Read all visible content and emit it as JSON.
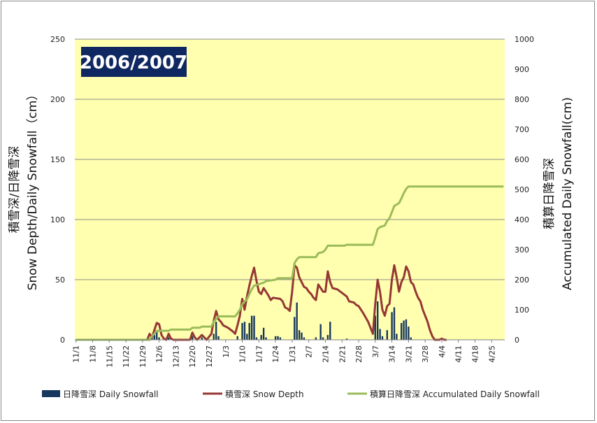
{
  "chart_data": {
    "type": "bar",
    "title": "2006/2007",
    "left_axis_label_line1": "積雪深/日降雪深",
    "left_axis_label_line2": "Snow Depth/Daily Snowfall（cm）",
    "right_axis_label_line1": "積算日降雪深",
    "right_axis_label_line2": "Accumulated Daily Snowfall(cm)",
    "ylim_left": [
      0,
      250
    ],
    "yticks_left": [
      0,
      50,
      100,
      150,
      200,
      250
    ],
    "ylim_right": [
      0,
      1000
    ],
    "yticks_right": [
      0,
      100,
      200,
      300,
      400,
      500,
      600,
      700,
      800,
      900,
      1000
    ],
    "x_start": "2006-11-01",
    "x_end": "2007-04-30",
    "x_tick_labels": [
      "11/1",
      "11/8",
      "11/15",
      "11/22",
      "11/29",
      "12/6",
      "12/13",
      "12/20",
      "12/27",
      "1/3",
      "1/10",
      "1/17",
      "1/24",
      "1/31",
      "2/7",
      "2/14",
      "2/21",
      "2/28",
      "3/7",
      "3/14",
      "3/21",
      "3/28",
      "4/4",
      "4/11",
      "4/18",
      "4/25"
    ],
    "grid": true,
    "plot_background": "#FFFFAF",
    "legend_position": "bottom",
    "series": [
      {
        "name": "日降雪深 Daily Snowfall",
        "type": "bar",
        "axis": "left",
        "color": "#17375E",
        "points": [
          [
            "12/3",
            3
          ],
          [
            "12/4",
            4
          ],
          [
            "12/5",
            8
          ],
          [
            "12/6",
            2
          ],
          [
            "12/10",
            2
          ],
          [
            "12/20",
            3
          ],
          [
            "12/24",
            2
          ],
          [
            "12/29",
            5
          ],
          [
            "12/30",
            15
          ],
          [
            "12/31",
            3
          ],
          [
            "1/8",
            3
          ],
          [
            "1/10",
            14
          ],
          [
            "1/11",
            15
          ],
          [
            "1/12",
            5
          ],
          [
            "1/13",
            14
          ],
          [
            "1/14",
            20
          ],
          [
            "1/15",
            20
          ],
          [
            "1/16",
            2
          ],
          [
            "1/18",
            4
          ],
          [
            "1/19",
            10
          ],
          [
            "1/20",
            2
          ],
          [
            "1/24",
            3
          ],
          [
            "1/25",
            3
          ],
          [
            "1/26",
            2
          ],
          [
            "2/1",
            19
          ],
          [
            "2/2",
            31
          ],
          [
            "2/3",
            8
          ],
          [
            "2/4",
            6
          ],
          [
            "2/5",
            2
          ],
          [
            "2/10",
            2
          ],
          [
            "2/12",
            13
          ],
          [
            "2/13",
            2
          ],
          [
            "2/15",
            4
          ],
          [
            "2/16",
            15
          ],
          [
            "2/23",
            1
          ],
          [
            "3/7",
            20
          ],
          [
            "3/8",
            32
          ],
          [
            "3/9",
            9
          ],
          [
            "3/10",
            3
          ],
          [
            "3/12",
            8
          ],
          [
            "3/14",
            23
          ],
          [
            "3/15",
            27
          ],
          [
            "3/16",
            5
          ],
          [
            "3/18",
            14
          ],
          [
            "3/19",
            16
          ],
          [
            "3/20",
            17
          ],
          [
            "3/21",
            11
          ],
          [
            "3/22",
            2
          ]
        ]
      },
      {
        "name": "積雪深 Snow Depth",
        "type": "line",
        "axis": "left",
        "color": "#953735",
        "points": [
          [
            "12/1",
            0
          ],
          [
            "12/2",
            5
          ],
          [
            "12/3",
            2
          ],
          [
            "12/5",
            14
          ],
          [
            "12/6",
            13
          ],
          [
            "12/7",
            4
          ],
          [
            "12/8",
            1
          ],
          [
            "12/9",
            0
          ],
          [
            "12/10",
            5
          ],
          [
            "12/11",
            1
          ],
          [
            "12/12",
            0
          ],
          [
            "12/19",
            0
          ],
          [
            "12/20",
            6
          ],
          [
            "12/21",
            2
          ],
          [
            "12/22",
            0
          ],
          [
            "12/24",
            4
          ],
          [
            "12/25",
            2
          ],
          [
            "12/26",
            0
          ],
          [
            "12/28",
            5
          ],
          [
            "12/29",
            16
          ],
          [
            "12/30",
            24
          ],
          [
            "12/31",
            17
          ],
          [
            "1/1",
            15
          ],
          [
            "1/2",
            12
          ],
          [
            "1/4",
            10
          ],
          [
            "1/6",
            7
          ],
          [
            "1/7",
            5
          ],
          [
            "1/8",
            12
          ],
          [
            "1/9",
            20
          ],
          [
            "1/10",
            34
          ],
          [
            "1/11",
            25
          ],
          [
            "1/12",
            36
          ],
          [
            "1/13",
            45
          ],
          [
            "1/14",
            53
          ],
          [
            "1/15",
            60
          ],
          [
            "1/16",
            49
          ],
          [
            "1/17",
            40
          ],
          [
            "1/18",
            38
          ],
          [
            "1/19",
            43
          ],
          [
            "1/20",
            40
          ],
          [
            "1/21",
            37
          ],
          [
            "1/22",
            33
          ],
          [
            "1/23",
            35
          ],
          [
            "1/26",
            34
          ],
          [
            "1/27",
            32
          ],
          [
            "1/28",
            27
          ],
          [
            "1/29",
            26
          ],
          [
            "1/30",
            24
          ],
          [
            "1/31",
            40
          ],
          [
            "2/1",
            62
          ],
          [
            "2/2",
            60
          ],
          [
            "2/3",
            52
          ],
          [
            "2/4",
            48
          ],
          [
            "2/5",
            44
          ],
          [
            "2/6",
            43
          ],
          [
            "2/7",
            40
          ],
          [
            "2/8",
            38
          ],
          [
            "2/9",
            35
          ],
          [
            "2/10",
            33
          ],
          [
            "2/11",
            46
          ],
          [
            "2/12",
            43
          ],
          [
            "2/13",
            40
          ],
          [
            "2/14",
            40
          ],
          [
            "2/15",
            57
          ],
          [
            "2/16",
            48
          ],
          [
            "2/17",
            43
          ],
          [
            "2/19",
            42
          ],
          [
            "2/21",
            39
          ],
          [
            "2/23",
            36
          ],
          [
            "2/24",
            32
          ],
          [
            "2/26",
            31
          ],
          [
            "2/27",
            29
          ],
          [
            "2/28",
            28
          ],
          [
            "3/2",
            22
          ],
          [
            "3/4",
            15
          ],
          [
            "3/5",
            10
          ],
          [
            "3/6",
            5
          ],
          [
            "3/7",
            30
          ],
          [
            "3/8",
            50
          ],
          [
            "3/9",
            40
          ],
          [
            "3/10",
            25
          ],
          [
            "3/11",
            20
          ],
          [
            "3/12",
            28
          ],
          [
            "3/13",
            30
          ],
          [
            "3/14",
            50
          ],
          [
            "3/15",
            62
          ],
          [
            "3/16",
            52
          ],
          [
            "3/17",
            40
          ],
          [
            "3/18",
            48
          ],
          [
            "3/19",
            52
          ],
          [
            "3/20",
            61
          ],
          [
            "3/21",
            57
          ],
          [
            "3/22",
            48
          ],
          [
            "3/23",
            46
          ],
          [
            "3/24",
            40
          ],
          [
            "3/25",
            35
          ],
          [
            "3/26",
            32
          ],
          [
            "3/27",
            25
          ],
          [
            "3/28",
            20
          ],
          [
            "3/29",
            15
          ],
          [
            "3/30",
            8
          ],
          [
            "3/31",
            3
          ],
          [
            "4/1",
            0
          ],
          [
            "4/3",
            0
          ],
          [
            "4/4",
            1
          ],
          [
            "4/5",
            0
          ],
          [
            "4/6",
            0
          ]
        ]
      },
      {
        "name": "積算日降雪深 Accumulated Daily Snowfall",
        "type": "line",
        "axis": "right",
        "color": "#9BBB59",
        "points": [
          [
            "11/1",
            0
          ],
          [
            "12/2",
            0
          ],
          [
            "12/3",
            12
          ],
          [
            "12/4",
            20
          ],
          [
            "12/5",
            30
          ],
          [
            "12/10",
            30
          ],
          [
            "12/11",
            34
          ],
          [
            "12/19",
            34
          ],
          [
            "12/20",
            40
          ],
          [
            "12/23",
            40
          ],
          [
            "12/24",
            44
          ],
          [
            "12/28",
            44
          ],
          [
            "12/29",
            60
          ],
          [
            "12/30",
            70
          ],
          [
            "12/31",
            78
          ],
          [
            "1/7",
            78
          ],
          [
            "1/8",
            88
          ],
          [
            "1/9",
            100
          ],
          [
            "1/10",
            118
          ],
          [
            "1/11",
            128
          ],
          [
            "1/12",
            134
          ],
          [
            "1/13",
            152
          ],
          [
            "1/14",
            168
          ],
          [
            "1/15",
            180
          ],
          [
            "1/19",
            190
          ],
          [
            "1/20",
            195
          ],
          [
            "1/24",
            200
          ],
          [
            "1/25",
            205
          ],
          [
            "1/31",
            205
          ],
          [
            "2/1",
            255
          ],
          [
            "2/2",
            268
          ],
          [
            "2/3",
            275
          ],
          [
            "2/10",
            275
          ],
          [
            "2/11",
            288
          ],
          [
            "2/13",
            292
          ],
          [
            "2/14",
            300
          ],
          [
            "2/15",
            313
          ],
          [
            "2/22",
            313
          ],
          [
            "2/23",
            316
          ],
          [
            "3/6",
            316
          ],
          [
            "3/7",
            340
          ],
          [
            "3/8",
            368
          ],
          [
            "3/9",
            375
          ],
          [
            "3/11",
            380
          ],
          [
            "3/12",
            395
          ],
          [
            "3/13",
            405
          ],
          [
            "3/14",
            425
          ],
          [
            "3/15",
            445
          ],
          [
            "3/16",
            450
          ],
          [
            "3/17",
            455
          ],
          [
            "3/18",
            470
          ],
          [
            "3/19",
            488
          ],
          [
            "3/20",
            502
          ],
          [
            "3/21",
            510
          ],
          [
            "4/30",
            510
          ]
        ]
      }
    ]
  }
}
